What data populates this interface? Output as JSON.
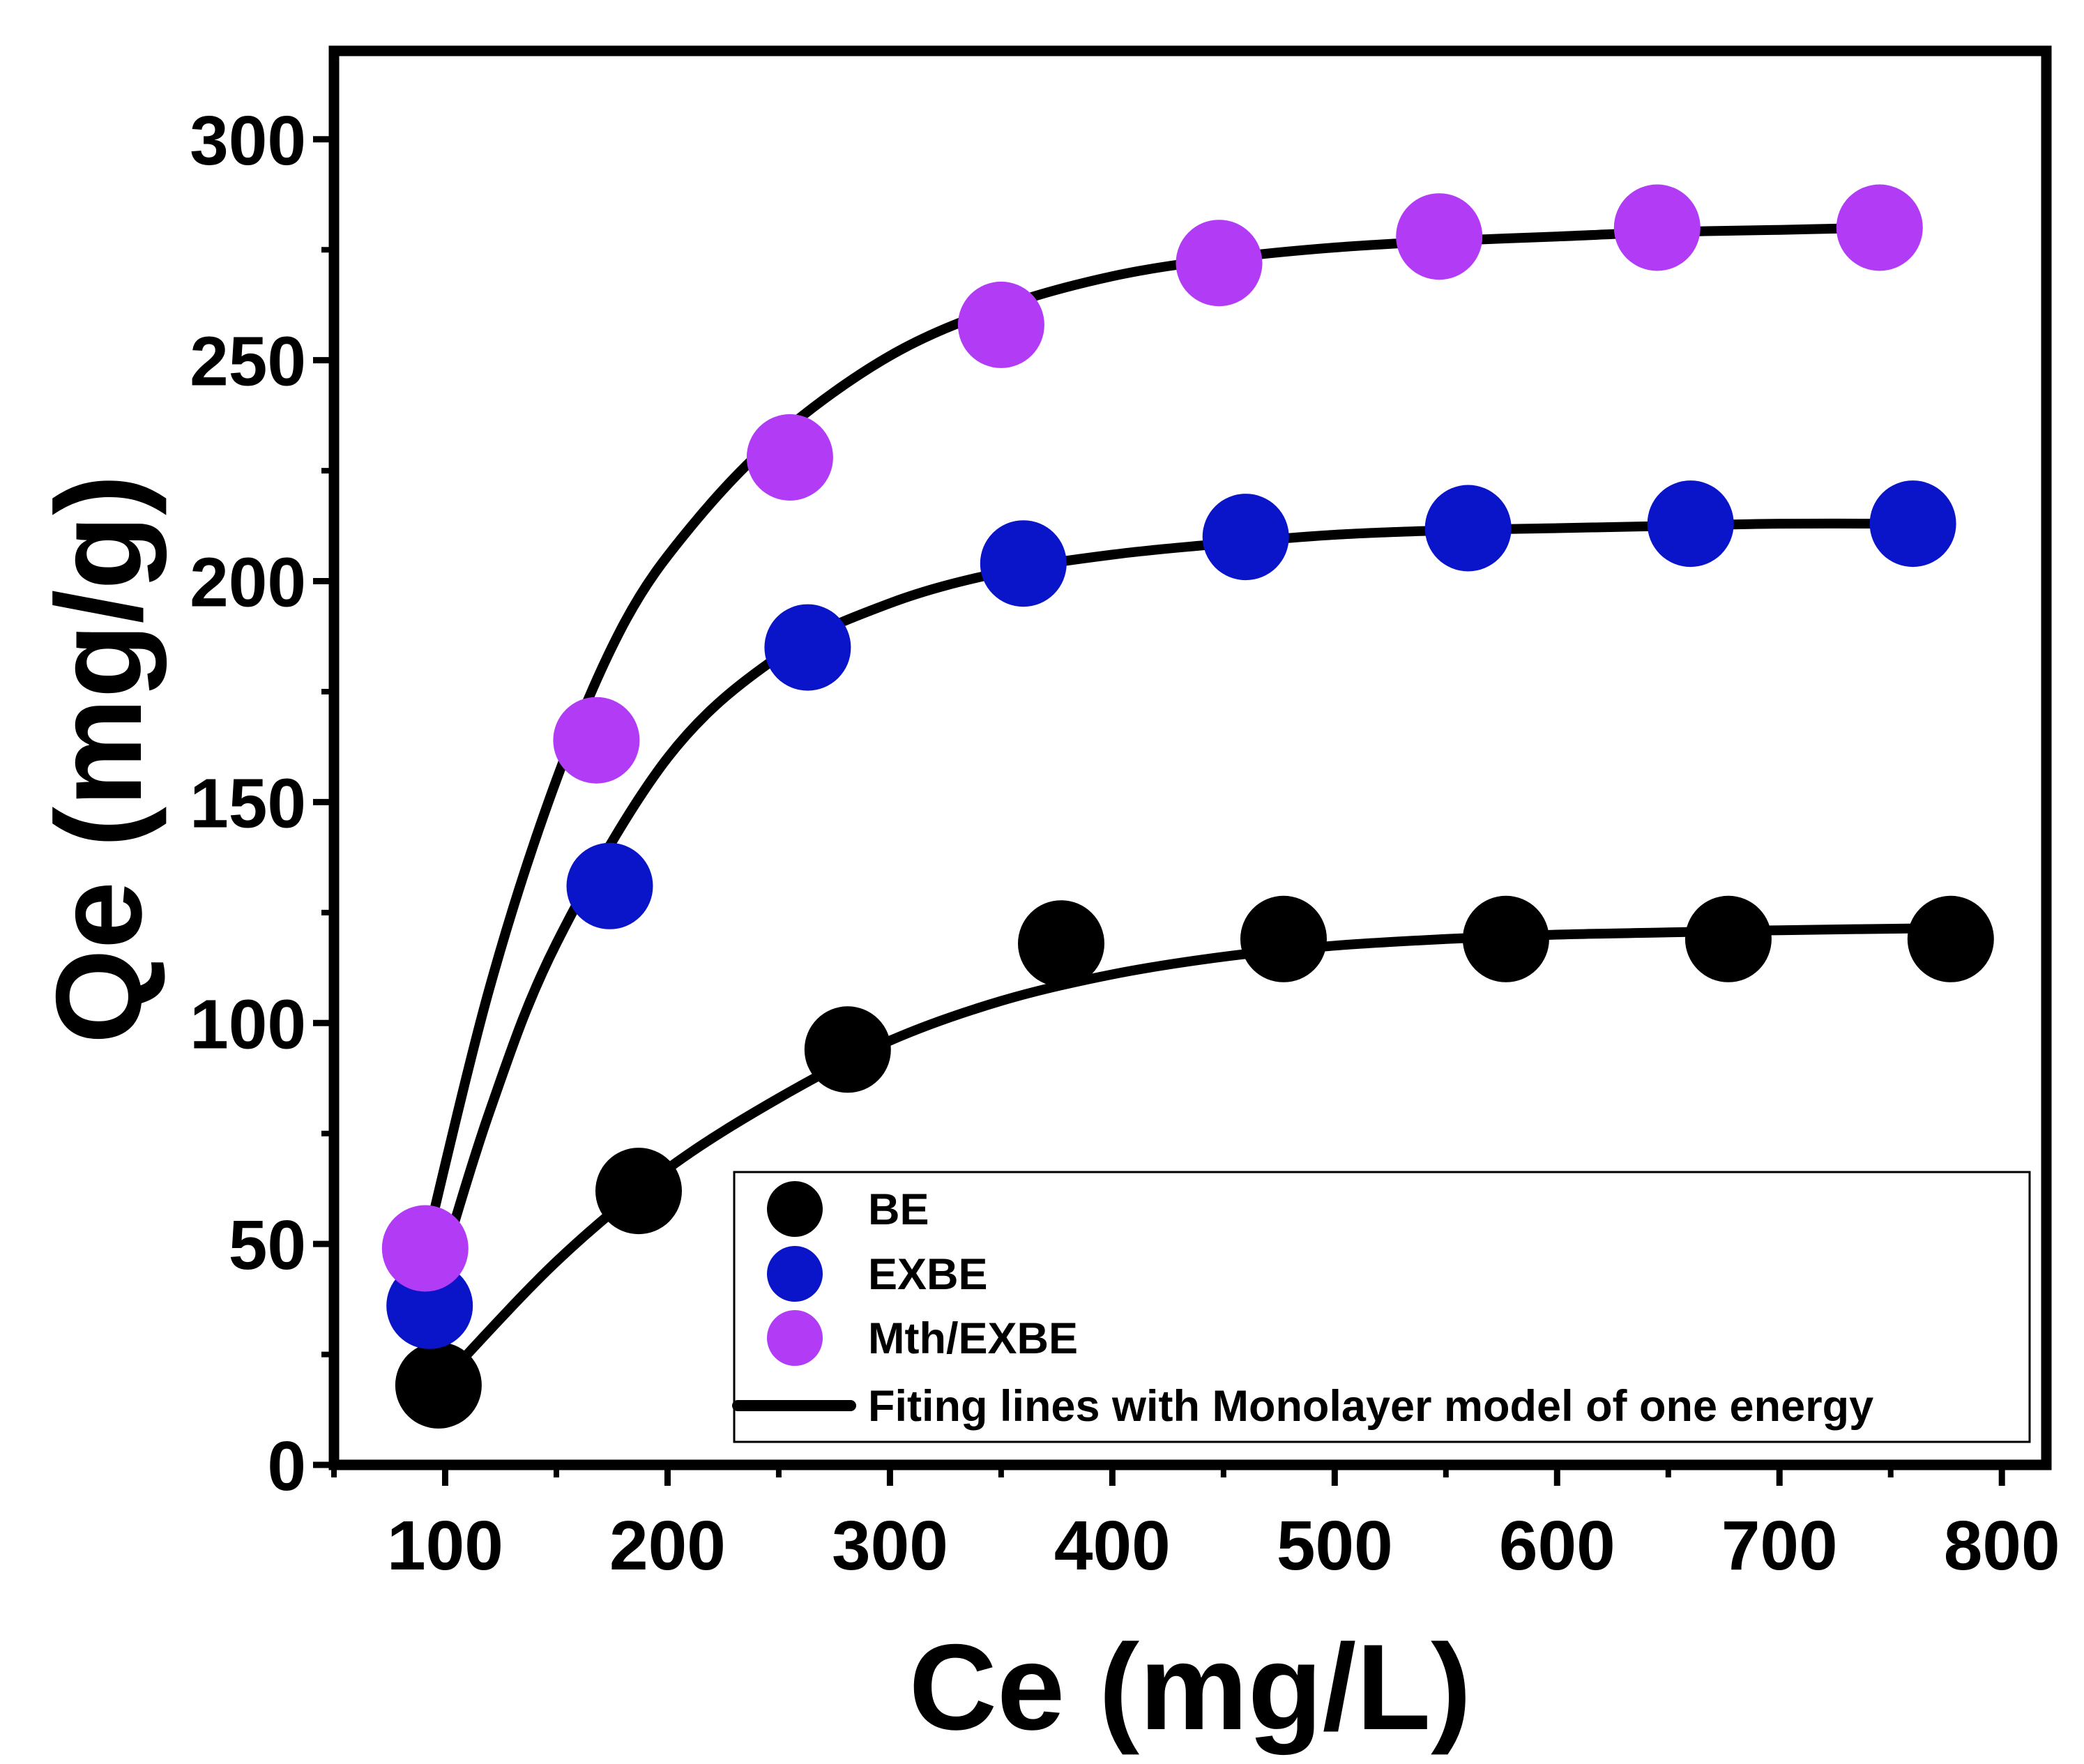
{
  "chart_data": {
    "type": "scatter",
    "title": "",
    "xlabel": "Ce (mg/L)",
    "ylabel": "Qe (mg/g)",
    "xlim": [
      50,
      820
    ],
    "ylim": [
      0,
      320
    ],
    "xticks": [
      100,
      200,
      300,
      400,
      500,
      600,
      700,
      800
    ],
    "yticks": [
      0,
      50,
      100,
      150,
      200,
      250,
      300
    ],
    "grid": false,
    "legend_position": "bottom-right",
    "series": [
      {
        "name": "BE",
        "color": "#000000",
        "x": [
          97,
          187,
          281,
          377,
          477,
          577,
          677,
          777
        ],
        "y": [
          18,
          62,
          94,
          118,
          119,
          119,
          119,
          119
        ]
      },
      {
        "name": "EXBE",
        "color": "#0a14c8",
        "x": [
          93,
          174,
          263,
          360,
          460,
          560,
          660,
          760
        ],
        "y": [
          36,
          131,
          185,
          204,
          210,
          212,
          213,
          213
        ]
      },
      {
        "name": "Mth/EXBE",
        "color": "#b23cf6",
        "x": [
          91,
          168,
          255,
          350,
          448,
          547,
          645,
          745
        ],
        "y": [
          49,
          164,
          228,
          258,
          272,
          278,
          280,
          280
        ]
      }
    ],
    "fit_lines": {
      "name": "Fiting lines with Monolayer model of one energy",
      "color": "#000000",
      "curves": [
        {
          "for": "BE",
          "x": [
            97,
            150,
            200,
            250,
            300,
            350,
            400,
            450,
            500,
            550,
            600,
            650,
            700,
            777
          ],
          "y": [
            18,
            46,
            67,
            83,
            96,
            105,
            111,
            115,
            117.5,
            119,
            120,
            120.5,
            121,
            121.5
          ]
        },
        {
          "for": "EXBE",
          "x": [
            93,
            120,
            150,
            200,
            250,
            300,
            350,
            400,
            450,
            500,
            550,
            600,
            650,
            700,
            760
          ],
          "y": [
            36,
            80,
            118,
            160,
            183,
            195,
            202,
            206,
            208.5,
            210.5,
            211.5,
            212,
            212.5,
            213,
            213
          ]
        },
        {
          "for": "Mth/EXBE",
          "x": [
            91,
            120,
            150,
            180,
            210,
            250,
            300,
            350,
            400,
            450,
            500,
            550,
            600,
            650,
            700,
            745
          ],
          "y": [
            49,
            108,
            155,
            190,
            212,
            233,
            251,
            262,
            269,
            273,
            275.5,
            277,
            278,
            279,
            279.5,
            280
          ]
        }
      ]
    }
  }
}
